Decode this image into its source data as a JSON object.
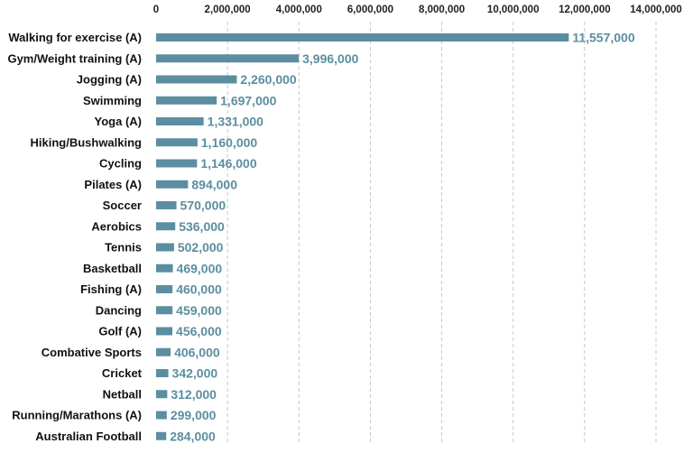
{
  "chart_data": {
    "type": "bar",
    "orientation": "horizontal",
    "title": "",
    "xlabel": "",
    "ylabel": "",
    "xlim": [
      0,
      14000000
    ],
    "x_ticks": [
      0,
      2000000,
      4000000,
      6000000,
      8000000,
      10000000,
      12000000,
      14000000
    ],
    "x_tick_labels": [
      "0",
      "2,000,000",
      "4,000,000",
      "6,000,000",
      "8,000,000",
      "10,000,000",
      "12,000,000",
      "14,000,000"
    ],
    "x_axis_position": "top",
    "grid": "vertical dashed",
    "legend": "none",
    "bar_color": "#5b8ea0",
    "label_color": "#5b8ea0",
    "categories": [
      "Walking for exercise (A)",
      "Gym/Weight training (A)",
      "Jogging (A)",
      "Swimming",
      "Yoga (A)",
      "Hiking/Bushwalking",
      "Cycling",
      "Pilates (A)",
      "Soccer",
      "Aerobics",
      "Tennis",
      "Basketball",
      "Fishing (A)",
      "Dancing",
      "Golf (A)",
      "Combative Sports",
      "Cricket",
      "Netball",
      "Running/Marathons (A)",
      "Australian Football"
    ],
    "values": [
      11557000,
      3996000,
      2260000,
      1697000,
      1331000,
      1160000,
      1146000,
      894000,
      570000,
      536000,
      502000,
      469000,
      460000,
      459000,
      456000,
      406000,
      342000,
      312000,
      299000,
      284000
    ],
    "data_labels": [
      "11,557,000",
      "3,996,000",
      "2,260,000",
      "1,697,000",
      "1,331,000",
      "1,160,000",
      "1,146,000",
      "894,000",
      "570,000",
      "536,000",
      "502,000",
      "469,000",
      "460,000",
      "459,000",
      "456,000",
      "406,000",
      "342,000",
      "312,000",
      "299,000",
      "284,000"
    ]
  }
}
